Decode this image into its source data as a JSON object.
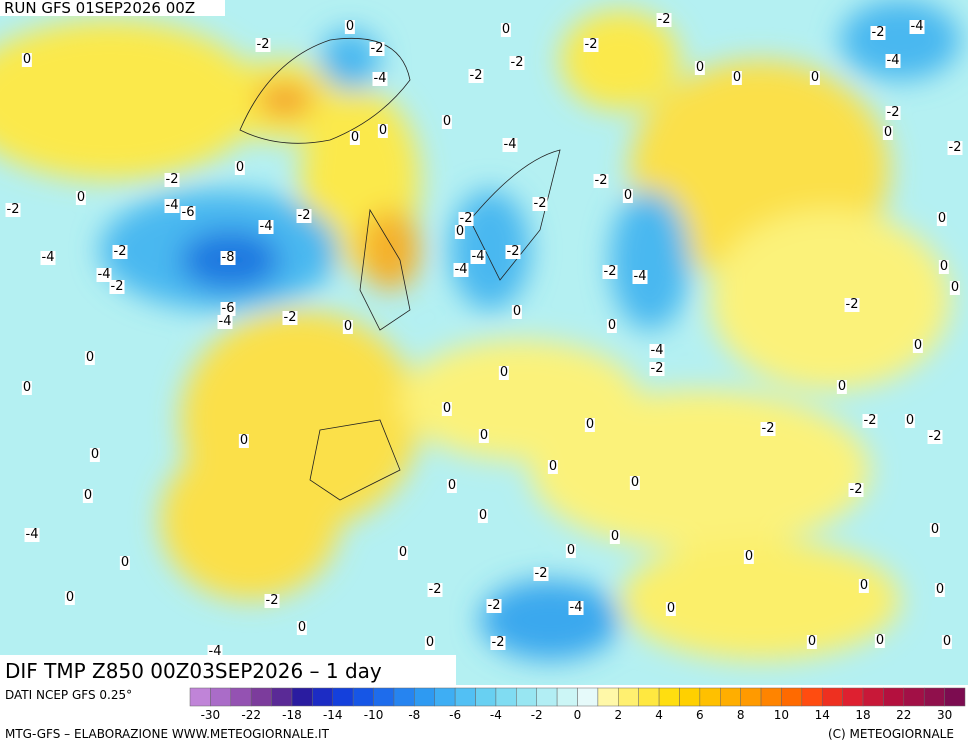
{
  "header": {
    "run": "RUN GFS 01SEP2026 00Z"
  },
  "map": {
    "title": "DIF TMP Z850 00Z03SEP2026 – 1 day",
    "labels": [
      "-2",
      "0",
      "-2",
      "-4",
      "0",
      "0",
      "0",
      "-2",
      "-2",
      "0",
      "-2",
      "-2",
      "0",
      "0",
      "0",
      "-2",
      "-4",
      "-4",
      "-2",
      "0",
      "-2",
      "0",
      "0",
      "-2",
      "-4",
      "-6",
      "-2",
      "-4",
      "-2",
      "-4",
      "-8",
      "-4",
      "-2",
      "-6",
      "-4",
      "-2",
      "0",
      "0",
      "-2",
      "0",
      "0",
      "0",
      "0",
      "0",
      "-4",
      "0",
      "0",
      "0",
      "0",
      "0",
      "0",
      "-2",
      "-2",
      "-4",
      "-2",
      "-2",
      "0",
      "0",
      "0",
      "-2",
      "-4",
      "-4",
      "-2",
      "0",
      "-2",
      "0",
      "-4",
      "-4",
      "-2",
      "-2",
      "-2",
      "-4",
      "0",
      "0",
      "-4",
      "-2",
      "0",
      "0",
      "0",
      "0",
      "0",
      "0",
      "0",
      "-2",
      "-2",
      "0",
      "-2",
      "0",
      "0",
      "-2",
      "0",
      "0",
      "0",
      "-2",
      "0",
      "0",
      "0",
      "0",
      "0",
      "0",
      "0"
    ]
  },
  "footer": {
    "source": "DATI NCEP GFS 0.25°",
    "credit": "MTG-GFS – ELABORAZIONE WWW.METEOGIORNALE.IT",
    "copyright": "(C) METEOGIORNALE",
    "scale_labels": [
      "-30",
      "-22",
      "-18",
      "-14",
      "-10",
      "-8",
      "-6",
      "-4",
      "-2",
      "0",
      "2",
      "4",
      "6",
      "8",
      "10",
      "14",
      "18",
      "22",
      "30"
    ]
  }
}
